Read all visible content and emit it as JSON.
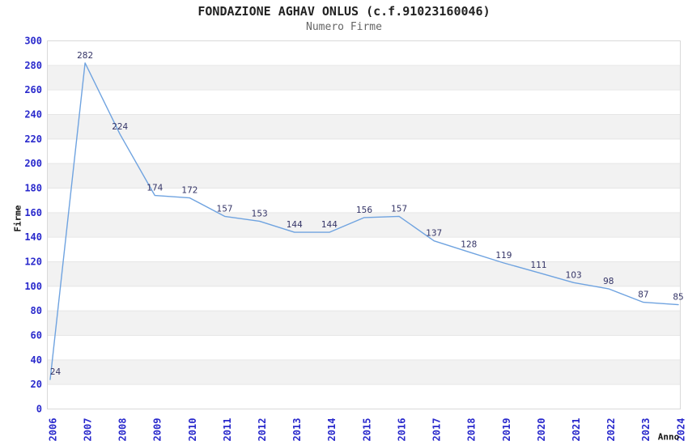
{
  "chart_data": {
    "type": "line",
    "title": "FONDAZIONE AGHAV ONLUS (c.f.91023160046)",
    "subtitle": "Numero Firme",
    "xlabel": "Anno",
    "ylabel": "Firme",
    "categories": [
      "2006",
      "2007",
      "2008",
      "2009",
      "2010",
      "2011",
      "2012",
      "2013",
      "2014",
      "2015",
      "2016",
      "2017",
      "2018",
      "2019",
      "2020",
      "2021",
      "2022",
      "2023",
      "2024"
    ],
    "values": [
      24,
      282,
      224,
      174,
      172,
      157,
      153,
      144,
      144,
      156,
      157,
      137,
      128,
      119,
      111,
      103,
      98,
      87,
      85
    ],
    "ylim": [
      0,
      300
    ],
    "ytick_step": 20,
    "yticks": [
      0,
      20,
      40,
      60,
      80,
      100,
      120,
      140,
      160,
      180,
      200,
      220,
      240,
      260,
      280,
      300
    ],
    "grid": "horizontal alternating bands, gridline every 20",
    "legend": "none",
    "point_labels_shown": true,
    "x_tick_rotation_deg": -90,
    "colors": {
      "line": "#6fa3e0",
      "tick_label": "#2929cc",
      "data_label": "#333366",
      "band": "#f2f2f2",
      "grid_line": "#e6e6e6",
      "plot_border": "#d9d9d9",
      "title": "#222222",
      "subtitle": "#666666",
      "axis_title": "#111111",
      "background": "#ffffff"
    }
  }
}
